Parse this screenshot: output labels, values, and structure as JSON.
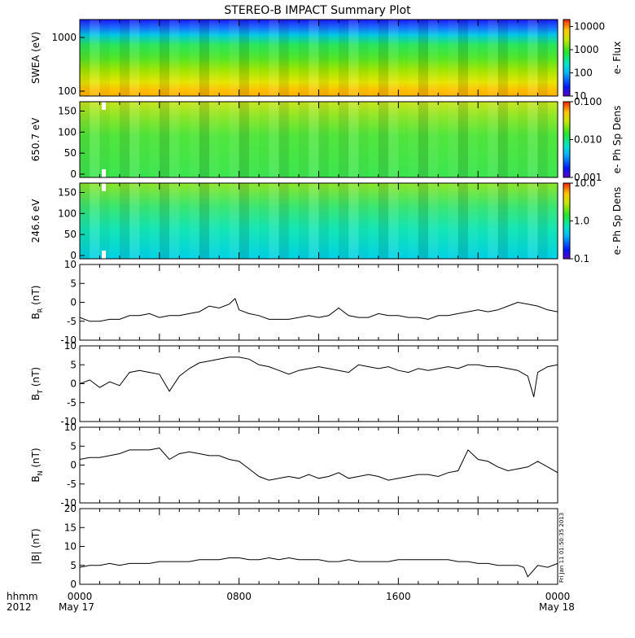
{
  "title": "STEREO-B IMPACT Summary Plot",
  "footer": {
    "hhmm": "hhmm",
    "year": "2012",
    "start_date": "May 17",
    "end_date": "May 18"
  },
  "side_note": "Fri Jan 11 01:50:35 2013",
  "chart_data": [
    {
      "type": "heatmap",
      "name": "swea",
      "ylabel": "SWEA (eV)",
      "y_scale": "log",
      "yticks": [
        "1000",
        "100"
      ],
      "colorbar": {
        "label": "e- Flux",
        "scale": "log",
        "ticks": [
          "10000",
          "1000",
          "100",
          "10"
        ],
        "range": [
          10,
          20000
        ]
      }
    },
    {
      "type": "heatmap",
      "name": "pad-650",
      "ylabel": "650.7 eV",
      "ylim": [
        0,
        180
      ],
      "yticks": [
        "150",
        "100",
        "50",
        "0"
      ],
      "colorbar": {
        "label": "e- Ph Sp Dens",
        "scale": "log",
        "ticks": [
          "0.100",
          "0.010",
          "0.001"
        ],
        "range": [
          0.001,
          0.1
        ]
      }
    },
    {
      "type": "heatmap",
      "name": "pad-246",
      "ylabel": "246.6 eV",
      "ylim": [
        0,
        180
      ],
      "yticks": [
        "150",
        "100",
        "50",
        "0"
      ],
      "colorbar": {
        "label": "e- Ph Sp Dens",
        "scale": "log",
        "ticks": [
          "10.0",
          "1.0",
          "0.1"
        ],
        "range": [
          0.1,
          10
        ]
      }
    },
    {
      "type": "line",
      "name": "br",
      "ylabel": "B_R (nT)",
      "ylim": [
        -10,
        10
      ],
      "yticks": [
        "10",
        "5",
        "0",
        "-5",
        "-10"
      ],
      "x_hours": [
        0,
        0.5,
        1,
        1.5,
        2,
        2.5,
        3,
        3.5,
        4,
        4.5,
        5,
        5.5,
        6,
        6.5,
        7,
        7.5,
        7.8,
        8,
        8.5,
        9,
        9.5,
        10,
        10.5,
        11,
        11.5,
        12,
        12.5,
        13,
        13.5,
        14,
        14.5,
        15,
        15.5,
        16,
        16.5,
        17,
        17.5,
        18,
        18.5,
        19,
        19.5,
        20,
        20.5,
        21,
        21.5,
        22,
        22.5,
        23,
        23.5,
        24
      ],
      "values": [
        -4,
        -5,
        -5,
        -4.5,
        -4.5,
        -3.5,
        -3.5,
        -3,
        -4,
        -3.5,
        -3.5,
        -3,
        -2.5,
        -1,
        -1.5,
        -0.5,
        1,
        -2,
        -3,
        -3.5,
        -4.5,
        -4.5,
        -4.5,
        -4,
        -3.5,
        -4,
        -3.5,
        -1.5,
        -3.5,
        -4,
        -4,
        -3,
        -3.5,
        -3.5,
        -4,
        -4,
        -4.5,
        -3.5,
        -3.5,
        -3,
        -2.5,
        -2,
        -2.5,
        -2,
        -1,
        0,
        -0.5,
        -1,
        -2,
        -2.5
      ]
    },
    {
      "type": "line",
      "name": "bt",
      "ylabel": "B_T (nT)",
      "ylim": [
        -10,
        10
      ],
      "yticks": [
        "10",
        "5",
        "0",
        "-5",
        "-10"
      ],
      "x_hours": [
        0,
        0.5,
        1,
        1.5,
        2,
        2.5,
        3,
        3.5,
        4,
        4.5,
        5,
        5.5,
        6,
        6.5,
        7,
        7.5,
        8,
        8.5,
        9,
        9.5,
        10,
        10.5,
        11,
        11.5,
        12,
        12.5,
        13,
        13.5,
        14,
        14.5,
        15,
        15.5,
        16,
        16.5,
        17,
        17.5,
        18,
        18.5,
        19,
        19.5,
        20,
        20.5,
        21,
        21.5,
        22,
        22.5,
        22.8,
        23,
        23.5,
        24
      ],
      "values": [
        0,
        1,
        -1,
        0.5,
        -0.5,
        3,
        3.5,
        3,
        2.5,
        -2,
        2,
        4,
        5.5,
        6,
        6.5,
        7,
        7,
        6.5,
        5,
        4.5,
        3.5,
        2.5,
        3.5,
        4,
        4.5,
        4,
        3.5,
        3,
        5,
        4.5,
        4,
        4.5,
        3.5,
        3,
        4,
        3.5,
        4,
        4.5,
        4,
        5,
        5,
        4.5,
        4.5,
        4,
        3.5,
        2,
        -3.5,
        3,
        4.5,
        5
      ]
    },
    {
      "type": "line",
      "name": "bn",
      "ylabel": "B_N (nT)",
      "ylim": [
        -10,
        10
      ],
      "yticks": [
        "10",
        "5",
        "0",
        "-5",
        "-10"
      ],
      "x_hours": [
        0,
        0.5,
        1,
        1.5,
        2,
        2.5,
        3,
        3.5,
        4,
        4.5,
        5,
        5.5,
        6,
        6.5,
        7,
        7.5,
        8,
        8.5,
        9,
        9.5,
        10,
        10.5,
        11,
        11.5,
        12,
        12.5,
        13,
        13.5,
        14,
        14.5,
        15,
        15.5,
        16,
        16.5,
        17,
        17.5,
        18,
        18.5,
        19,
        19.5,
        20,
        20.5,
        21,
        21.5,
        22,
        22.5,
        23,
        23.5,
        24
      ],
      "values": [
        1.5,
        2,
        2,
        2.5,
        3,
        4,
        4,
        4,
        4.5,
        1.5,
        3,
        3.5,
        3,
        2.5,
        2.5,
        1.5,
        1,
        -1,
        -3,
        -4,
        -3.5,
        -3,
        -3.5,
        -2.5,
        -3.5,
        -3,
        -2,
        -3.5,
        -3,
        -2.5,
        -3,
        -4,
        -3.5,
        -3,
        -2.5,
        -2.5,
        -3,
        -2,
        -1.5,
        4,
        1.5,
        1,
        -0.5,
        -1.5,
        -1,
        -0.5,
        1,
        -0.5,
        -2
      ]
    },
    {
      "type": "line",
      "name": "bmag",
      "ylabel": "|B| (nT)",
      "ylim": [
        0,
        20
      ],
      "yticks": [
        "20",
        "15",
        "10",
        "5",
        "0"
      ],
      "x_hours": [
        0,
        0.5,
        1,
        1.5,
        2,
        2.5,
        3,
        3.5,
        4,
        4.5,
        5,
        5.5,
        6,
        6.5,
        7,
        7.5,
        8,
        8.5,
        9,
        9.5,
        10,
        10.5,
        11,
        11.5,
        12,
        12.5,
        13,
        13.5,
        14,
        14.5,
        15,
        15.5,
        16,
        16.5,
        17,
        17.5,
        18,
        18.5,
        19,
        19.5,
        20,
        20.5,
        21,
        21.5,
        22,
        22.3,
        22.5,
        23,
        23.5,
        24
      ],
      "values": [
        4.5,
        5,
        5,
        5.5,
        5,
        5.5,
        5.5,
        5.5,
        6,
        6,
        6,
        6,
        6.5,
        6.5,
        6.5,
        7,
        7,
        6.5,
        6.5,
        7,
        6.5,
        7,
        6.5,
        6.5,
        6.5,
        6,
        6,
        6.5,
        6,
        6,
        6,
        6,
        6.5,
        6.5,
        6.5,
        6.5,
        6.5,
        6.5,
        6,
        6,
        5.5,
        5.5,
        5,
        5,
        5,
        4.5,
        2,
        5,
        4.5,
        5.5
      ]
    }
  ],
  "x_axis": {
    "type": "time",
    "range_hours": [
      0,
      24
    ],
    "tick_labels": [
      "0000",
      "0800",
      "1600",
      "0000"
    ]
  }
}
